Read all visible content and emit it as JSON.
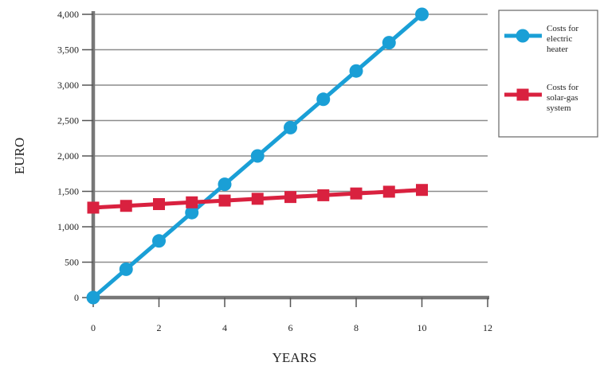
{
  "chart_data": {
    "type": "line",
    "xlabel": "YEARS",
    "ylabel": "EURO",
    "xlim": [
      0,
      12
    ],
    "ylim": [
      0,
      4000
    ],
    "x_ticks": [
      "0",
      "2",
      "4",
      "6",
      "8",
      "10",
      "12"
    ],
    "y_ticks": [
      "0",
      "500",
      "1,000",
      "1,500",
      "2,000",
      "2,500",
      "3,000",
      "3,500",
      "4,000"
    ],
    "grid": "horizontal",
    "legend_position": "right",
    "series": [
      {
        "name": "Costs for electric heater",
        "legend_lines": [
          "Costs for",
          "electric",
          "heater"
        ],
        "color": "#1a9fd6",
        "marker": "circle",
        "x": [
          0,
          1,
          2,
          3,
          4,
          5,
          6,
          7,
          8,
          9,
          10
        ],
        "y": [
          0,
          400,
          800,
          1200,
          1600,
          2000,
          2400,
          2800,
          3200,
          3600,
          4000
        ]
      },
      {
        "name": "Costs for solar-gas system",
        "legend_lines": [
          "Costs for",
          "solar-gas",
          "system"
        ],
        "color": "#d9213f",
        "marker": "square",
        "x": [
          0,
          1,
          2,
          3,
          4,
          5,
          6,
          7,
          8,
          9,
          10
        ],
        "y": [
          1270,
          1295,
          1320,
          1345,
          1370,
          1395,
          1420,
          1445,
          1470,
          1495,
          1520
        ]
      }
    ]
  }
}
